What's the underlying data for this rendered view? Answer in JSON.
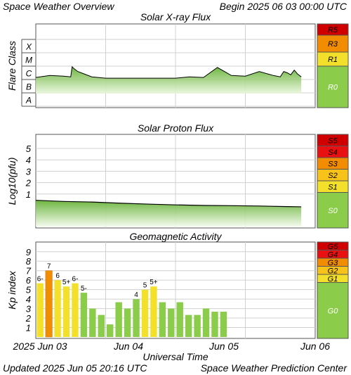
{
  "header": {
    "left": "Space Weather Overview",
    "right": "Begin 2025 06 03 00:00 UTC"
  },
  "footer": {
    "left": "Updated 2025 Jun 05 20:16 UTC",
    "right": "Space Weather Prediction Center"
  },
  "chart_data": [
    {
      "type": "area",
      "title": "Solar X-ray Flux",
      "ylabel": "Flare Class",
      "ytick_labels": [
        "A",
        "B",
        "C",
        "M",
        "X"
      ],
      "xlim": [
        0,
        4
      ],
      "x_tick_days": [
        0,
        1,
        2,
        3
      ],
      "scale_labels": [
        "R5",
        "R3",
        "R1",
        "R0"
      ],
      "scale_colors": [
        "#d10000",
        "#f28c00",
        "#f3e02a",
        "#8bcc4b"
      ],
      "series": [
        {
          "x": [
            0,
            0.2,
            0.4,
            0.5,
            0.52,
            0.55,
            0.6,
            0.7,
            0.8,
            1.0,
            1.2,
            1.5,
            1.8,
            2.0,
            2.2,
            2.4,
            2.6,
            2.8,
            3.0,
            3.2,
            3.4,
            3.5,
            3.55,
            3.6,
            3.65,
            3.7,
            3.75,
            3.8
          ],
          "y": [
            2.15,
            2.3,
            2.25,
            2.2,
            2.95,
            2.8,
            2.6,
            2.4,
            2.2,
            2.1,
            2.1,
            2.1,
            2.1,
            2.1,
            2.2,
            2.15,
            2.9,
            2.3,
            2.25,
            2.6,
            2.3,
            2.2,
            2.6,
            2.5,
            2.35,
            2.7,
            2.4,
            2.2
          ]
        }
      ]
    },
    {
      "type": "area",
      "title": "Solar Proton Flux",
      "ylabel": "Log10(pfu)",
      "yticks": [
        1,
        2,
        3,
        4,
        5
      ],
      "xlim": [
        0,
        4
      ],
      "scale_labels": [
        "S5",
        "S4",
        "S3",
        "S2",
        "S1",
        "S0"
      ],
      "scale_colors": [
        "#d10000",
        "#e81010",
        "#f28c00",
        "#f7c31a",
        "#f3e02a",
        "#8bcc4b"
      ],
      "series": [
        {
          "x": [
            0,
            0.4,
            0.8,
            1.2,
            1.6,
            2.0,
            2.4,
            2.8,
            3.2,
            3.6,
            3.8
          ],
          "y": [
            0.45,
            0.35,
            0.3,
            0.2,
            0.12,
            0.05,
            0.0,
            -0.02,
            -0.05,
            -0.1,
            -0.12
          ]
        }
      ]
    },
    {
      "type": "bar",
      "title": "Geomagnetic Activity",
      "ylabel": "Kp index",
      "yticks": [
        1,
        2,
        3,
        4,
        5,
        6,
        7,
        8,
        9
      ],
      "ylim": [
        0,
        9.8
      ],
      "xlabel": "Universal Time",
      "x_tick_labels": [
        "2025 Jun 03",
        "Jun 04",
        "Jun 05",
        "Jun 06"
      ],
      "values": [
        5.67,
        7.0,
        6.0,
        5.33,
        5.67,
        4.67,
        3.0,
        2.33,
        1.33,
        3.67,
        3.0,
        4.0,
        5.0,
        5.33,
        3.67,
        3.0,
        3.67,
        2.33,
        2.33,
        3.0,
        2.67,
        2.67
      ],
      "value_labels": [
        "6-",
        "7",
        "6",
        "5+",
        "6-",
        "5-",
        "",
        "",
        "",
        "",
        "",
        "4",
        "5",
        "5+",
        "",
        "",
        "",
        "",
        "",
        "",
        "",
        ""
      ],
      "colors": {
        "storm": "#f28c00",
        "active": "#f3e02a",
        "quiet": "#8bcc4b"
      },
      "scale_labels": [
        "G5",
        "G4",
        "G3",
        "G2",
        "G1",
        "G0"
      ],
      "scale_colors": [
        "#d10000",
        "#e81010",
        "#f28c00",
        "#f7c31a",
        "#f3e02a",
        "#8bcc4b"
      ]
    }
  ]
}
